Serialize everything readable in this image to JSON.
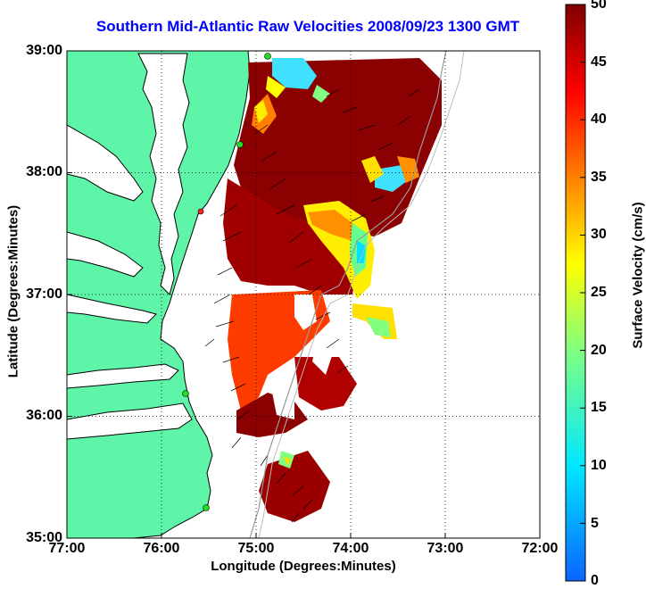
{
  "title": "Southern Mid-Atlantic Raw Velocities 2008/09/23 1300 GMT",
  "x_axis": {
    "label": "Longitude (Degrees:Minutes)",
    "ticks": [
      "77:00",
      "76:00",
      "75:00",
      "74:00",
      "73:00",
      "72:00"
    ]
  },
  "y_axis": {
    "label": "Latitude (Degrees:Minutes)",
    "ticks": [
      "39:00",
      "38:00",
      "37:00",
      "36:00",
      "35:00"
    ]
  },
  "colorbar": {
    "label": "Surface Velocity (cm/s)",
    "ticks": [
      "50",
      "45",
      "40",
      "35",
      "30",
      "25",
      "20",
      "15",
      "10",
      "5",
      "0"
    ],
    "range": [
      0,
      50
    ],
    "colormap": "jet"
  },
  "map": {
    "lon_range": [
      -77,
      -72
    ],
    "lat_range": [
      35,
      39
    ],
    "land_color": "#5ff5a8",
    "grid": "dotted"
  }
}
